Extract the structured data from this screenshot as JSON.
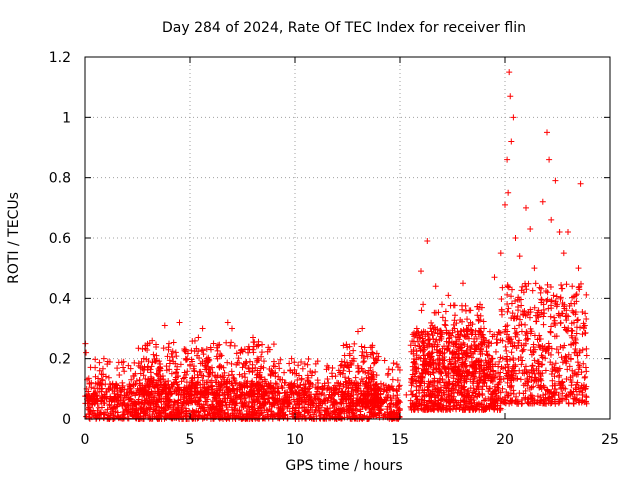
{
  "chart_data": {
    "type": "scatter",
    "title": "Day 284 of 2024, Rate Of TEC Index for receiver flin",
    "xlabel": "GPS time / hours",
    "ylabel": "ROTI / TECUs",
    "xlim": [
      0,
      25
    ],
    "ylim": [
      0,
      1.2
    ],
    "xticks": [
      0,
      5,
      10,
      15,
      20,
      25
    ],
    "xtick_labels": [
      "0",
      "5",
      "10",
      "15",
      "20",
      "25"
    ],
    "yticks": [
      0,
      0.2,
      0.4,
      0.6,
      0.8,
      1,
      1.2
    ],
    "ytick_labels": [
      "0",
      "0.2",
      "0.4",
      "0.6",
      "0.8",
      "1",
      "1.2"
    ],
    "grid": true,
    "marker": "+",
    "series": [
      {
        "name": "ROTI",
        "color": "#ff0000",
        "points": [
          [
            0.02,
            0.25
          ],
          [
            0.05,
            0.22
          ],
          [
            0.1,
            0.13
          ],
          [
            0.15,
            0.06
          ],
          [
            0.2,
            0.03
          ],
          [
            0.3,
            0.12
          ],
          [
            0.4,
            0.08
          ],
          [
            0.5,
            0.14
          ],
          [
            0.6,
            0.05
          ],
          [
            0.7,
            0.16
          ],
          [
            0.8,
            0.13
          ],
          [
            0.9,
            0.2
          ],
          [
            1.0,
            0.09
          ],
          [
            1.2,
            0.07
          ],
          [
            1.4,
            0.04
          ],
          [
            1.6,
            0.06
          ],
          [
            1.8,
            0.11
          ],
          [
            2.0,
            0.08
          ],
          [
            2.2,
            0.13
          ],
          [
            2.4,
            0.15
          ],
          [
            2.6,
            0.1
          ],
          [
            2.8,
            0.2
          ],
          [
            3.0,
            0.17
          ],
          [
            3.2,
            0.26
          ],
          [
            3.4,
            0.21
          ],
          [
            3.6,
            0.14
          ],
          [
            3.8,
            0.31
          ],
          [
            4.0,
            0.25
          ],
          [
            4.2,
            0.19
          ],
          [
            4.5,
            0.32
          ],
          [
            4.8,
            0.23
          ],
          [
            5.0,
            0.18
          ],
          [
            5.2,
            0.16
          ],
          [
            5.4,
            0.27
          ],
          [
            5.6,
            0.3
          ],
          [
            5.8,
            0.2
          ],
          [
            6.0,
            0.23
          ],
          [
            6.2,
            0.14
          ],
          [
            6.5,
            0.21
          ],
          [
            6.8,
            0.32
          ],
          [
            7.0,
            0.3
          ],
          [
            7.2,
            0.18
          ],
          [
            7.4,
            0.22
          ],
          [
            7.6,
            0.15
          ],
          [
            7.8,
            0.24
          ],
          [
            8.0,
            0.27
          ],
          [
            8.2,
            0.2
          ],
          [
            8.5,
            0.17
          ],
          [
            8.8,
            0.23
          ],
          [
            9.0,
            0.19
          ],
          [
            9.2,
            0.14
          ],
          [
            9.5,
            0.12
          ],
          [
            9.8,
            0.1
          ],
          [
            10.0,
            0.15
          ],
          [
            10.3,
            0.13
          ],
          [
            10.6,
            0.18
          ],
          [
            11.0,
            0.08
          ],
          [
            11.3,
            0.1
          ],
          [
            11.6,
            0.17
          ],
          [
            12.0,
            0.12
          ],
          [
            12.3,
            0.16
          ],
          [
            12.6,
            0.24
          ],
          [
            12.8,
            0.2
          ],
          [
            13.0,
            0.29
          ],
          [
            13.2,
            0.3
          ],
          [
            13.4,
            0.22
          ],
          [
            13.6,
            0.17
          ],
          [
            13.8,
            0.11
          ],
          [
            14.0,
            0.1
          ],
          [
            14.4,
            0.07
          ],
          [
            14.8,
            0.05
          ],
          [
            15.0,
            0.03
          ],
          [
            15.3,
            0.08
          ],
          [
            15.6,
            0.13
          ],
          [
            15.8,
            0.3
          ],
          [
            16.0,
            0.49
          ],
          [
            16.1,
            0.38
          ],
          [
            16.3,
            0.59
          ],
          [
            16.5,
            0.29
          ],
          [
            16.7,
            0.44
          ],
          [
            17.0,
            0.38
          ],
          [
            17.3,
            0.41
          ],
          [
            17.6,
            0.3
          ],
          [
            18.0,
            0.45
          ],
          [
            18.3,
            0.36
          ],
          [
            18.6,
            0.28
          ],
          [
            19.0,
            0.3
          ],
          [
            19.2,
            0.18
          ],
          [
            19.5,
            0.47
          ],
          [
            19.8,
            0.55
          ],
          [
            20.0,
            0.71
          ],
          [
            20.1,
            0.86
          ],
          [
            20.15,
            0.75
          ],
          [
            20.2,
            1.15
          ],
          [
            20.25,
            1.07
          ],
          [
            20.3,
            0.92
          ],
          [
            20.4,
            1.0
          ],
          [
            20.5,
            0.6
          ],
          [
            20.7,
            0.54
          ],
          [
            20.9,
            0.42
          ],
          [
            21.0,
            0.7
          ],
          [
            21.2,
            0.63
          ],
          [
            21.4,
            0.5
          ],
          [
            21.6,
            0.36
          ],
          [
            21.8,
            0.72
          ],
          [
            22.0,
            0.95
          ],
          [
            22.1,
            0.86
          ],
          [
            22.2,
            0.66
          ],
          [
            22.4,
            0.79
          ],
          [
            22.6,
            0.62
          ],
          [
            22.8,
            0.55
          ],
          [
            23.0,
            0.62
          ],
          [
            23.2,
            0.44
          ],
          [
            23.4,
            0.39
          ],
          [
            23.5,
            0.5
          ],
          [
            23.6,
            0.78
          ],
          [
            23.8,
            0.31
          ]
        ],
        "density_bands": [
          {
            "x_start": 0.0,
            "x_end": 15.0,
            "y_low": 0.0,
            "y_high": 0.12,
            "count": 1500
          },
          {
            "x_start": 0.0,
            "x_end": 15.0,
            "y_low": 0.05,
            "y_high": 0.2,
            "count": 500
          },
          {
            "x_start": 2.5,
            "x_end": 9.0,
            "y_low": 0.08,
            "y_high": 0.26,
            "count": 350
          },
          {
            "x_start": 12.2,
            "x_end": 14.0,
            "y_low": 0.05,
            "y_high": 0.25,
            "count": 150
          },
          {
            "x_start": 15.5,
            "x_end": 19.8,
            "y_low": 0.03,
            "y_high": 0.3,
            "count": 800
          },
          {
            "x_start": 16.0,
            "x_end": 19.0,
            "y_low": 0.15,
            "y_high": 0.38,
            "count": 200
          },
          {
            "x_start": 19.8,
            "x_end": 23.9,
            "y_low": 0.05,
            "y_high": 0.45,
            "count": 600
          }
        ]
      }
    ]
  }
}
